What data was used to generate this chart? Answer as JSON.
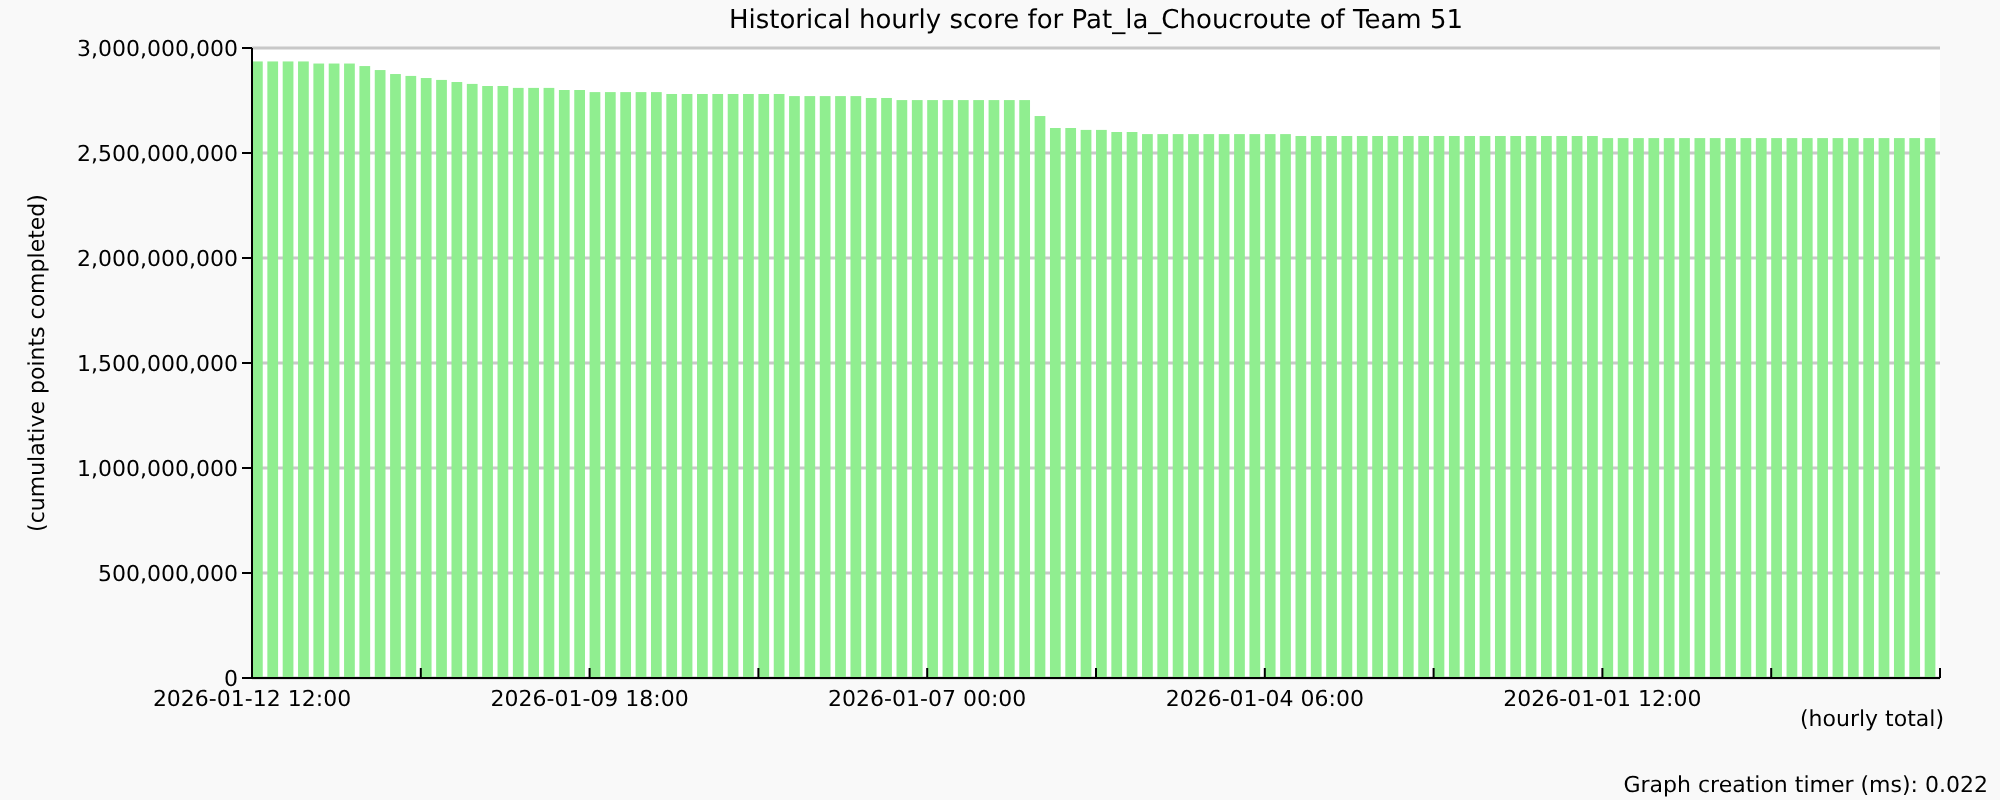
{
  "chart_data": {
    "type": "bar",
    "title": "Historical hourly score for Pat_la_Choucroute of Team 51",
    "ylabel": "(cumulative points completed)",
    "xlabel": "(hourly total)",
    "annotations": [
      "Graph creation timer (ms): 0.022"
    ],
    "x": [
      "2026-01-12T12:00",
      "2026-01-12T09:00",
      "2026-01-12T06:00",
      "2026-01-12T03:00",
      "2026-01-12T00:00",
      "2026-01-11T21:00",
      "2026-01-11T18:00",
      "2026-01-11T15:00",
      "2026-01-11T12:00",
      "2026-01-11T09:00",
      "2026-01-11T06:00",
      "2026-01-11T03:00",
      "2026-01-11T00:00",
      "2026-01-10T21:00",
      "2026-01-10T18:00",
      "2026-01-10T15:00",
      "2026-01-10T12:00",
      "2026-01-10T09:00",
      "2026-01-10T06:00",
      "2026-01-10T03:00",
      "2026-01-10T00:00",
      "2026-01-09T21:00",
      "2026-01-09T18:00",
      "2026-01-09T15:00",
      "2026-01-09T12:00",
      "2026-01-09T09:00",
      "2026-01-09T06:00",
      "2026-01-09T03:00",
      "2026-01-09T00:00",
      "2026-01-08T21:00",
      "2026-01-08T18:00",
      "2026-01-08T15:00",
      "2026-01-08T12:00",
      "2026-01-08T09:00",
      "2026-01-08T06:00",
      "2026-01-08T03:00",
      "2026-01-08T00:00",
      "2026-01-07T21:00",
      "2026-01-07T18:00",
      "2026-01-07T15:00",
      "2026-01-07T12:00",
      "2026-01-07T09:00",
      "2026-01-07T06:00",
      "2026-01-07T03:00",
      "2026-01-07T00:00",
      "2026-01-06T21:00",
      "2026-01-06T18:00",
      "2026-01-06T15:00",
      "2026-01-06T12:00",
      "2026-01-06T09:00",
      "2026-01-06T06:00",
      "2026-01-06T03:00",
      "2026-01-06T00:00",
      "2026-01-05T21:00",
      "2026-01-05T18:00",
      "2026-01-05T15:00",
      "2026-01-05T12:00",
      "2026-01-05T09:00",
      "2026-01-05T06:00",
      "2026-01-05T03:00",
      "2026-01-05T00:00",
      "2026-01-04T21:00",
      "2026-01-04T18:00",
      "2026-01-04T15:00",
      "2026-01-04T12:00",
      "2026-01-04T09:00",
      "2026-01-04T06:00",
      "2026-01-04T03:00",
      "2026-01-04T00:00",
      "2026-01-03T21:00",
      "2026-01-03T18:00",
      "2026-01-03T15:00",
      "2026-01-03T12:00",
      "2026-01-03T09:00",
      "2026-01-03T06:00",
      "2026-01-03T03:00",
      "2026-01-03T00:00",
      "2026-01-02T21:00",
      "2026-01-02T18:00",
      "2026-01-02T15:00",
      "2026-01-02T12:00",
      "2026-01-02T09:00",
      "2026-01-02T06:00",
      "2026-01-02T03:00",
      "2026-01-02T00:00",
      "2026-01-01T21:00",
      "2026-01-01T18:00",
      "2026-01-01T15:00",
      "2026-01-01T12:00",
      "2026-01-01T09:00",
      "2026-01-01T06:00",
      "2026-01-01T03:00",
      "2026-01-01T00:00",
      "2025-12-31T21:00",
      "2025-12-31T18:00",
      "2025-12-31T15:00",
      "2025-12-31T12:00",
      "2025-12-31T09:00",
      "2025-12-31T06:00",
      "2025-12-31T03:00",
      "2025-12-31T00:00",
      "2025-12-30T21:00",
      "2025-12-30T18:00",
      "2025-12-30T15:00",
      "2025-12-30T12:00",
      "2025-12-30T09:00",
      "2025-12-30T06:00",
      "2025-12-30T03:00",
      "2025-12-30T00:00",
      "2025-12-29T21:00"
    ],
    "values": [
      2936000000,
      2936000000,
      2936000000,
      2936000000,
      2926000000,
      2926000000,
      2926000000,
      2914000000,
      2895000000,
      2876000000,
      2867000000,
      2857000000,
      2848000000,
      2838000000,
      2829000000,
      2819000000,
      2819000000,
      2810000000,
      2810000000,
      2810000000,
      2800000000,
      2800000000,
      2790000000,
      2790000000,
      2790000000,
      2790000000,
      2790000000,
      2781000000,
      2781000000,
      2781000000,
      2781000000,
      2781000000,
      2781000000,
      2781000000,
      2781000000,
      2771000000,
      2771000000,
      2771000000,
      2771000000,
      2771000000,
      2762000000,
      2762000000,
      2752000000,
      2752000000,
      2752000000,
      2752000000,
      2752000000,
      2752000000,
      2752000000,
      2752000000,
      2752000000,
      2676000000,
      2619000000,
      2619000000,
      2610000000,
      2610000000,
      2600000000,
      2600000000,
      2590000000,
      2590000000,
      2590000000,
      2590000000,
      2590000000,
      2590000000,
      2590000000,
      2590000000,
      2590000000,
      2590000000,
      2581000000,
      2581000000,
      2581000000,
      2581000000,
      2581000000,
      2581000000,
      2581000000,
      2581000000,
      2581000000,
      2581000000,
      2581000000,
      2581000000,
      2581000000,
      2581000000,
      2581000000,
      2581000000,
      2581000000,
      2581000000,
      2581000000,
      2581000000,
      2571000000,
      2571000000,
      2571000000,
      2571000000,
      2571000000,
      2571000000,
      2571000000,
      2571000000,
      2571000000,
      2571000000,
      2571000000,
      2571000000,
      2571000000,
      2571000000,
      2571000000,
      2571000000,
      2571000000,
      2571000000,
      2571000000,
      2571000000,
      2571000000,
      2571000000
    ],
    "color": "#90ee90",
    "xlim": [
      "2026-01-12T12:00",
      "2025-12-29T18:00"
    ],
    "xticks": [
      {
        "value": "2026-01-12T12:00",
        "label": "2026-01-12 12:00"
      },
      {
        "value": "2026-01-11T03:00",
        "label": null
      },
      {
        "value": "2026-01-09T18:00",
        "label": "2026-01-09 18:00"
      },
      {
        "value": "2026-01-08T09:00",
        "label": null
      },
      {
        "value": "2026-01-07T00:00",
        "label": "2026-01-07 00:00"
      },
      {
        "value": "2026-01-05T15:00",
        "label": null
      },
      {
        "value": "2026-01-04T06:00",
        "label": "2026-01-04 06:00"
      },
      {
        "value": "2026-01-02T21:00",
        "label": null
      },
      {
        "value": "2026-01-01T12:00",
        "label": "2026-01-01 12:00"
      },
      {
        "value": "2025-12-31T03:00",
        "label": null
      },
      {
        "value": "2025-12-29T18:00",
        "label": null
      }
    ],
    "ylim": [
      0,
      3000000000
    ],
    "yticks": [
      0,
      {
        "value": 500000000,
        "label": "500,000,000"
      },
      {
        "value": 1000000000,
        "label": "1,000,000,000"
      },
      {
        "value": 1500000000,
        "label": "1,500,000,000"
      },
      {
        "value": 2000000000,
        "label": "2,000,000,000"
      },
      {
        "value": 2500000000,
        "label": "2,500,000,000"
      },
      {
        "value": 3000000000,
        "label": "3,000,000,000"
      }
    ],
    "grid": "y"
  }
}
